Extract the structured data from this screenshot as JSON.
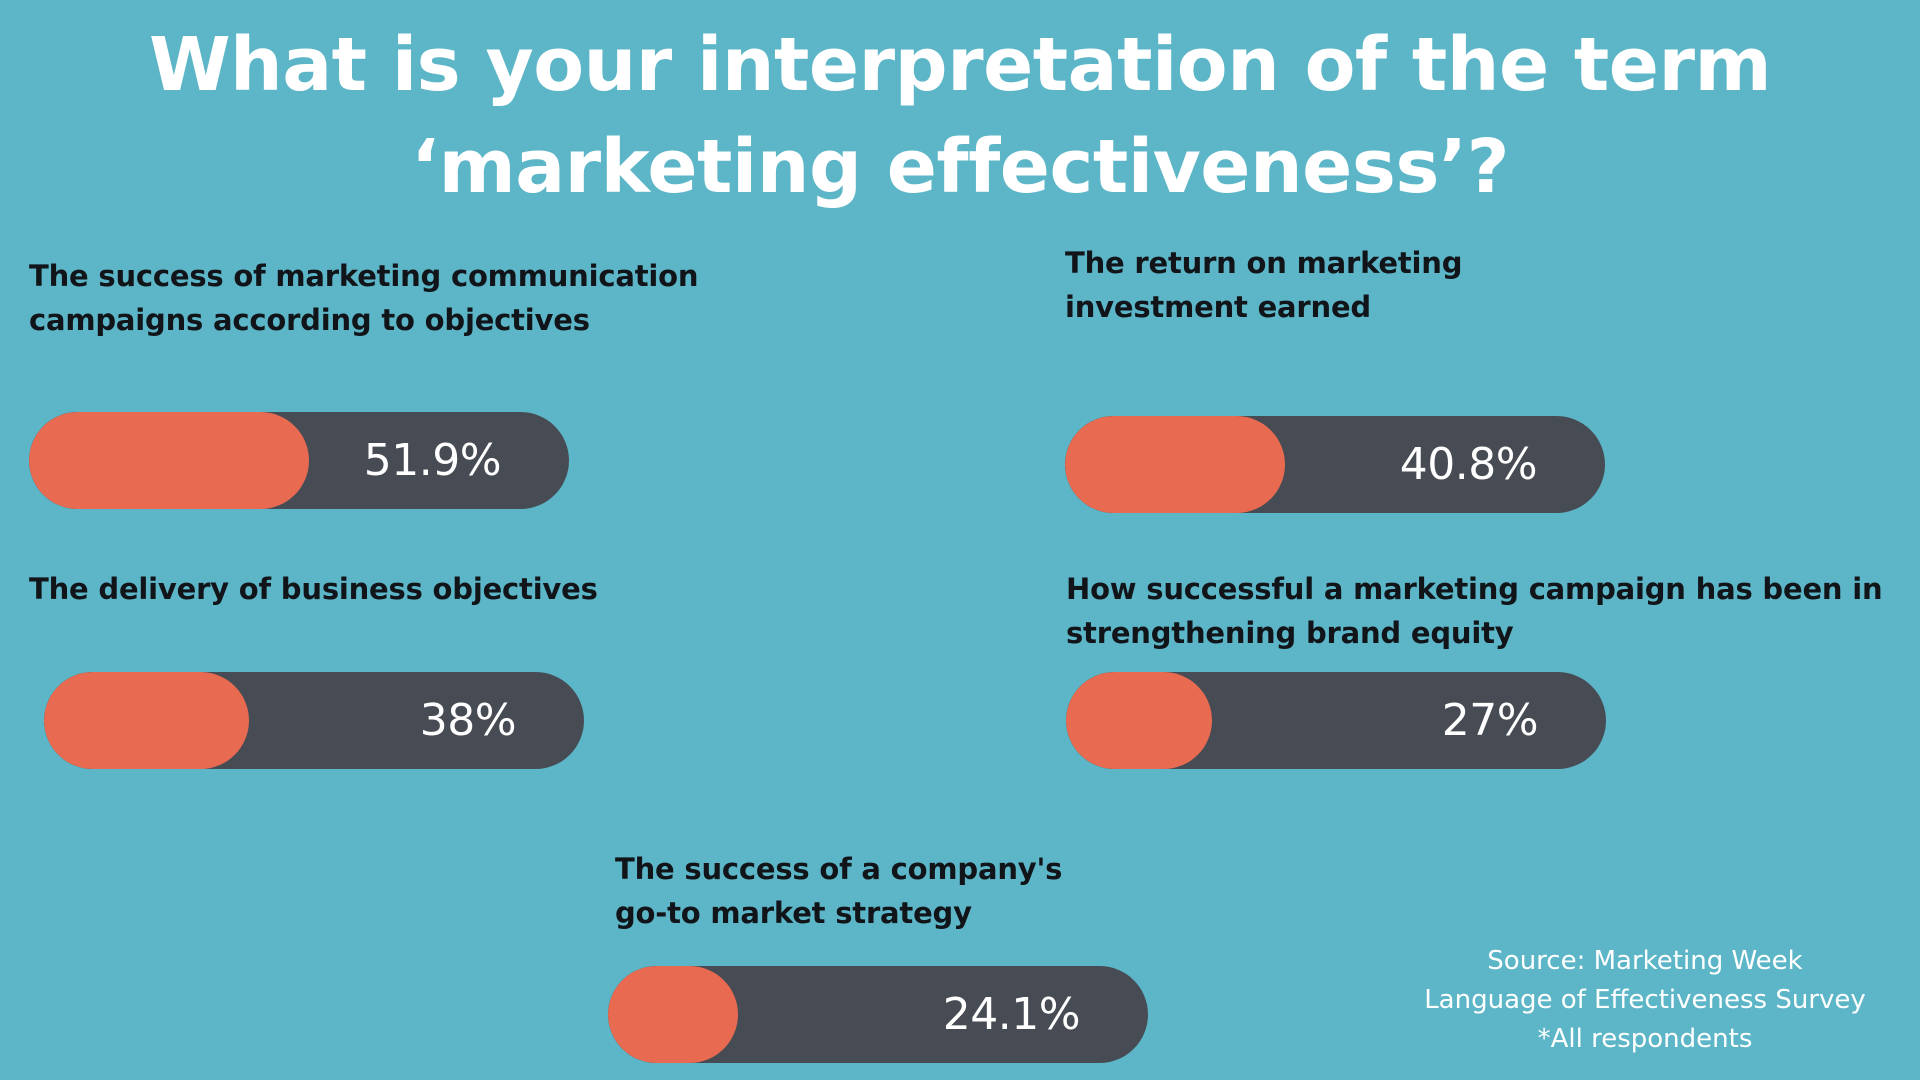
{
  "chart_data": {
    "type": "bar",
    "title": "What is your interpretation of the term ‘marketing effectiveness’?",
    "title_lines": [
      "What is your interpretation of the term",
      "‘marketing effectiveness’?"
    ],
    "categories": [
      "The success of marketing communication campaigns according to objectives",
      "The return on marketing investment earned",
      "The delivery of business objectives",
      "How successful a marketing campaign has been in strengthening brand equity",
      "The success of a company's go-to market strategy"
    ],
    "category_display": [
      "The success of marketing communication\ncampaigns according to objectives",
      "The return on marketing\ninvestment earned",
      "The delivery of business objectives",
      "How successful a marketing campaign has been in\nstrengthening brand equity",
      "The success of a company's\ngo-to market strategy"
    ],
    "values": [
      51.9,
      40.8,
      38,
      27,
      24.1
    ],
    "value_labels": [
      "51.9%",
      "40.8%",
      "38%",
      "27%",
      "24.1%"
    ],
    "ylim": [
      0,
      100
    ],
    "xlabel": "",
    "ylabel": "",
    "grid": false,
    "legend": "none",
    "colors": {
      "background": "#5cb6c7",
      "bar_fill": "#e86a50",
      "bar_track": "#474c54",
      "title": "#ffffff",
      "label": "#111418"
    }
  },
  "source": {
    "line1": "Source: Marketing Week",
    "line2": "Language of Effectiveness Survey",
    "line3": "*All respondents"
  }
}
